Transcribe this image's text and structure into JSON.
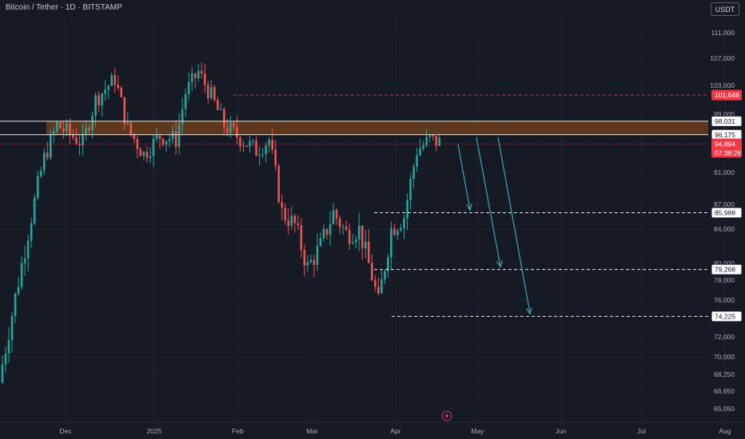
{
  "header": {
    "symbol_line": "Bitcoin / Tether · 1D · BITSTAMP",
    "currency_button": "USDT"
  },
  "colors": {
    "background": "#161a25",
    "up_candle": "#26a69a",
    "down_candle": "#ef5350",
    "resistance_zone": "#6b3e1c",
    "arrow": "#3fa8b3",
    "current_price_tag": "#f23645"
  },
  "chart_data": {
    "type": "candlestick",
    "title": "",
    "xlabel": "",
    "ylabel": "",
    "x_ticks": [
      {
        "label": "Dec",
        "t": 0.088
      },
      {
        "label": "2025",
        "t": 0.207
      },
      {
        "label": "Feb",
        "t": 0.319
      },
      {
        "label": "Mar",
        "t": 0.419
      },
      {
        "label": "Apr",
        "t": 0.531
      },
      {
        "label": "May",
        "t": 0.641
      },
      {
        "label": "Jun",
        "t": 0.753
      },
      {
        "label": "Jul",
        "t": 0.861
      },
      {
        "label": "Aug",
        "t": 0.973
      }
    ],
    "y_ticks": [
      "111,000",
      "107,000",
      "103,000",
      "99,000",
      "91,000",
      "87,000",
      "84,000",
      "80,000",
      "78,000",
      "76,000",
      "72,000",
      "70,000",
      "68,250",
      "66,650",
      "65,050"
    ],
    "price_levels": [
      {
        "label": "101,648",
        "style": "red-dashed",
        "tag": "red"
      },
      {
        "label": "98,031",
        "style": "white-solid",
        "tag": "outline"
      },
      {
        "label": "96,175",
        "style": "white-solid",
        "tag": "outline"
      },
      {
        "label": "94,894",
        "sub": "07:38:26",
        "style": "red-dotted",
        "tag": "current"
      },
      {
        "label": "85,988",
        "style": "white-dashed",
        "tag": "outline"
      },
      {
        "label": "79,268",
        "style": "white-dashed",
        "tag": "outline"
      },
      {
        "label": "74,225",
        "style": "white-dashed",
        "tag": "outline"
      }
    ],
    "resistance_zone": {
      "from": "96,175",
      "to": "98,031"
    },
    "projection_arrows": 3,
    "candles_approx": 140
  }
}
